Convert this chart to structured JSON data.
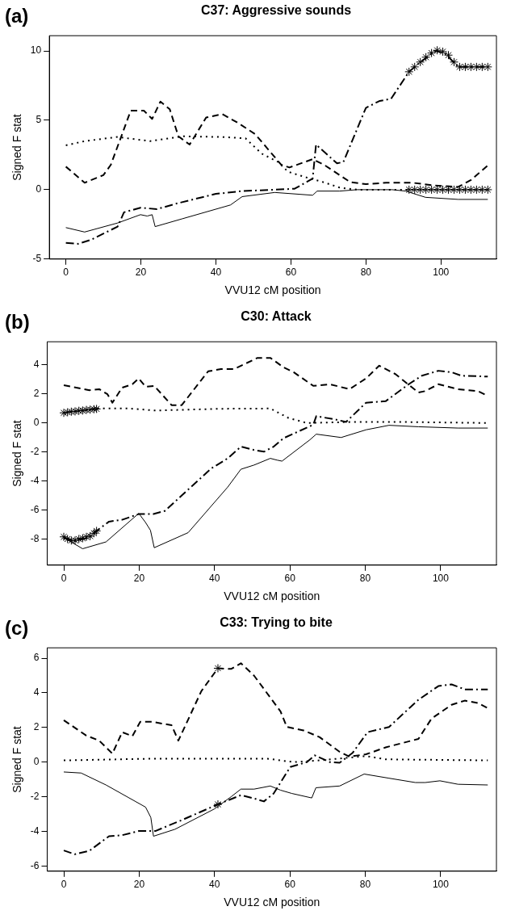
{
  "chart_data": [
    {
      "type": "line",
      "title": "C37: Aggressive sounds",
      "xlabel": "VVU12 cM position",
      "ylabel": "Signed F stat",
      "annotations": [
        "(a)"
      ],
      "xlim": [
        -4.4,
        114.8
      ],
      "xticks": [
        0,
        20,
        40,
        60,
        80,
        100
      ],
      "ylim": [
        -5,
        11.1
      ],
      "yticks": [
        -5,
        0,
        5,
        10
      ],
      "grid": false,
      "series": [
        {
          "type": "line",
          "line_style": "solid",
          "color": "#000000",
          "x": [
            0,
            5,
            13.8,
            19.9,
            21.7,
            23,
            23.8,
            31,
            43.9,
            47,
            55.7,
            65.8,
            67,
            73,
            77.6,
            87,
            90.6,
            95.9,
            104.6,
            112.5
          ],
          "values": [
            -2.73,
            -3.05,
            -2.4,
            -1.8,
            -1.9,
            -1.8,
            -2.66,
            -2.1,
            -1.1,
            -0.5,
            -0.2,
            -0.4,
            -0.1,
            -0.1,
            0,
            0,
            -0.1,
            -0.55,
            -0.7,
            -0.7
          ]
        },
        {
          "type": "line",
          "line_style": "dashed",
          "color": "#000000",
          "x": [
            0,
            5,
            10,
            12,
            17.3,
            20.8,
            23,
            25.2,
            27.7,
            30,
            33,
            37.4,
            41.7,
            46,
            50.5,
            57.4,
            59.6,
            65.8,
            68.8,
            75.8,
            80,
            85.4,
            92.4,
            98.5,
            104.6,
            108,
            112.7
          ],
          "values": [
            1.66,
            0.5,
            1.05,
            1.8,
            5.7,
            5.7,
            5.1,
            6.35,
            5.8,
            3.85,
            3.25,
            5.2,
            5.45,
            4.8,
            4,
            1.8,
            1.6,
            2.2,
            1.8,
            0.55,
            0.4,
            0.5,
            0.5,
            0.3,
            0.2,
            0.7,
            1.8
          ]
        },
        {
          "type": "line",
          "line_style": "dotted",
          "color": "#000000",
          "x": [
            0,
            5,
            13.8,
            22.5,
            31.3,
            41.7,
            47.9,
            52.2,
            56.6,
            59.2,
            64.5,
            68,
            73,
            77.6,
            112.5
          ],
          "values": [
            3.2,
            3.5,
            3.8,
            3.5,
            3.85,
            3.8,
            3.7,
            2.6,
            2,
            1.3,
            0.85,
            0.6,
            0.15,
            0,
            0
          ]
        },
        {
          "type": "line",
          "line_style": "dashdot",
          "color": "#000000",
          "x": [
            0,
            3.3,
            6.8,
            13.8,
            15.5,
            19.9,
            24.3,
            29.5,
            40,
            47,
            55.7,
            61,
            65.8,
            66.7,
            72.3,
            74,
            80,
            83.7,
            86.7,
            91.5,
            94.1,
            98.5,
            101,
            104.6,
            112.5
          ],
          "values": [
            -3.83,
            -3.9,
            -3.6,
            -2.66,
            -1.63,
            -1.3,
            -1.4,
            -1,
            -0.3,
            -0.1,
            0,
            0.07,
            0.8,
            3.25,
            1.9,
            2,
            5.9,
            6.4,
            6.55,
            8.5,
            9.1,
            10,
            9.85,
            8.85,
            8.85
          ]
        },
        {
          "type": "scatter",
          "marker": "cross",
          "color": "#000000",
          "x": [
            91.5,
            93,
            94.5,
            96,
            97.5,
            99,
            100.5,
            102,
            103.5,
            105,
            106.5,
            108,
            109.5,
            111,
            112.5
          ],
          "values": [
            8.5,
            8.85,
            9.2,
            9.55,
            9.85,
            10.05,
            9.95,
            9.7,
            9.2,
            8.85,
            8.85,
            8.85,
            8.85,
            8.85,
            8.85
          ]
        },
        {
          "type": "scatter",
          "marker": "cross",
          "color": "#000000",
          "x": [
            91.5,
            93,
            94.5,
            96,
            97.5,
            99,
            100.5,
            102,
            103.5,
            105,
            106.5,
            108,
            109.5,
            111,
            112.5
          ],
          "values": [
            0,
            0,
            0,
            0,
            0,
            0,
            0,
            0,
            0,
            0,
            0,
            0,
            0,
            0,
            0
          ]
        }
      ]
    },
    {
      "type": "line",
      "title": "C30: Attack",
      "xlabel": "VVU12 cM position",
      "ylabel": "Signed F stat",
      "annotations": [
        "(b)"
      ],
      "xlim": [
        -4.4,
        114.8
      ],
      "xticks": [
        0,
        20,
        40,
        60,
        80,
        100
      ],
      "ylim": [
        -9.8,
        5.6
      ],
      "yticks": [
        -8,
        -6,
        -4,
        -2,
        0,
        2,
        4
      ],
      "grid": false,
      "series": [
        {
          "type": "line",
          "line_style": "solid",
          "color": "#000000",
          "x": [
            0,
            5,
            11.2,
            19.9,
            21.7,
            23,
            24,
            33,
            43.5,
            47,
            50.5,
            54.8,
            56.6,
            57.9,
            65.3,
            67,
            73.6,
            80.2,
            86.3,
            94.1,
            104.6,
            112.5
          ],
          "values": [
            -7.9,
            -8.67,
            -8.2,
            -6.23,
            -6.86,
            -7.4,
            -8.6,
            -7.56,
            -4.42,
            -3.19,
            -2.9,
            -2.44,
            -2.56,
            -2.63,
            -1.16,
            -0.77,
            -1,
            -0.47,
            -0.16,
            -0.26,
            -0.35,
            -0.35
          ]
        },
        {
          "type": "line",
          "line_style": "dashed",
          "color": "#000000",
          "x": [
            0,
            6.8,
            9.4,
            11.6,
            12.9,
            15.5,
            18.2,
            19.9,
            21.7,
            24,
            28.6,
            31.3,
            38.3,
            41.7,
            45.2,
            51.4,
            54.8,
            58.3,
            61,
            66.2,
            70.6,
            75.8,
            80.2,
            83.7,
            88,
            94.1,
            95.9,
            99.4,
            104.6,
            109.9,
            112.5
          ],
          "values": [
            2.6,
            2.26,
            2.33,
            1.98,
            1.4,
            2.44,
            2.67,
            3.07,
            2.5,
            2.56,
            1.23,
            1.23,
            3.56,
            3.72,
            3.72,
            4.49,
            4.49,
            3.84,
            3.5,
            2.56,
            2.67,
            2.33,
            3.07,
            3.95,
            3.37,
            2.1,
            2.2,
            2.67,
            2.33,
            2.2,
            1.86
          ]
        },
        {
          "type": "line",
          "line_style": "dotted",
          "color": "#000000",
          "x": [
            0,
            8.7,
            17.3,
            24.3,
            41.7,
            54.8,
            59.6,
            64.5,
            76.7,
            89.8,
            112.5
          ],
          "values": [
            0.7,
            1,
            1,
            0.86,
            0.98,
            1,
            0.35,
            0,
            0.07,
            0.07,
            0
          ]
        },
        {
          "type": "line",
          "line_style": "dashdot",
          "color": "#000000",
          "x": [
            0,
            2.9,
            6.8,
            8.7,
            12,
            15.5,
            19.9,
            23.8,
            26.9,
            31.3,
            39.1,
            43.5,
            47,
            50.5,
            53.1,
            55.7,
            58.3,
            66.2,
            67,
            72.3,
            74.9,
            80.2,
            85.4,
            91.5,
            95,
            99.4,
            102.9,
            105.5,
            112.5
          ],
          "values": [
            -7.9,
            -8.14,
            -7.9,
            -7.44,
            -6.8,
            -6.67,
            -6.28,
            -6.28,
            -6.05,
            -5,
            -3.14,
            -2.44,
            -1.63,
            -1.86,
            -1.98,
            -1.63,
            -1.05,
            -0.12,
            0.47,
            0.23,
            0.07,
            1.4,
            1.5,
            2.67,
            3.26,
            3.6,
            3.5,
            3.26,
            3.2
          ]
        },
        {
          "type": "scatter",
          "marker": "cross",
          "color": "#000000",
          "x": [
            0,
            1,
            2,
            3,
            4,
            5,
            6,
            7,
            8,
            8.7
          ],
          "values": [
            -7.85,
            -8,
            -8.1,
            -8.1,
            -8,
            -7.95,
            -7.85,
            -7.8,
            -7.6,
            -7.44
          ]
        },
        {
          "type": "scatter",
          "marker": "cross",
          "color": "#000000",
          "x": [
            0,
            1,
            2,
            3,
            4,
            5,
            6,
            7,
            8,
            8.7
          ],
          "values": [
            0.7,
            0.74,
            0.78,
            0.8,
            0.84,
            0.86,
            0.9,
            0.92,
            0.95,
            0.97
          ]
        }
      ]
    },
    {
      "type": "line",
      "title": "C33: Trying to bite",
      "xlabel": "VVU12 cM position",
      "ylabel": "Signed F stat",
      "annotations": [
        "(c)"
      ],
      "xlim": [
        -4.4,
        114.8
      ],
      "xticks": [
        0,
        20,
        40,
        60,
        80,
        100
      ],
      "ylim": [
        -6.3,
        6.6
      ],
      "yticks": [
        -6,
        -4,
        -2,
        0,
        2,
        4,
        6
      ],
      "grid": false,
      "series": [
        {
          "type": "line",
          "line_style": "solid",
          "color": "#000000",
          "x": [
            0,
            4.6,
            11.2,
            21.7,
            23.1,
            23.8,
            29.5,
            40,
            44.4,
            47,
            50.5,
            54.8,
            57.5,
            60.5,
            65.8,
            66.9,
            73.2,
            79.7,
            86.3,
            93.3,
            95.9,
            99.8,
            104.6,
            112.5
          ],
          "values": [
            -0.57,
            -0.63,
            -1.32,
            -2.6,
            -3.2,
            -4.28,
            -3.88,
            -2.7,
            -2,
            -1.56,
            -1.56,
            -1.38,
            -1.62,
            -1.81,
            -2.07,
            -1.48,
            -1.38,
            -0.69,
            -0.93,
            -1.18,
            -1.18,
            -1.08,
            -1.28,
            -1.32
          ]
        },
        {
          "type": "line",
          "line_style": "dashed",
          "color": "#000000",
          "x": [
            0,
            5.9,
            9.4,
            12.9,
            15.5,
            18.2,
            20.3,
            23.4,
            26,
            28.6,
            30.4,
            36.5,
            40.9,
            44.4,
            47,
            50.5,
            57.5,
            59.2,
            63.6,
            67.9,
            73.2,
            75.8,
            80.2,
            85.4,
            94.1,
            97.6,
            102.9,
            106.4,
            109.9,
            112.5
          ],
          "values": [
            2.42,
            1.54,
            1.24,
            0.49,
            1.73,
            1.5,
            2.33,
            2.33,
            2.23,
            2.13,
            1.24,
            4.1,
            5.42,
            5.38,
            5.71,
            4.99,
            2.93,
            2.03,
            1.83,
            1.44,
            0.59,
            0.32,
            0.45,
            0.85,
            1.34,
            2.52,
            3.31,
            3.55,
            3.41,
            3.11
          ]
        },
        {
          "type": "line",
          "line_style": "dotted",
          "color": "#000000",
          "x": [
            0,
            24.3,
            54,
            61,
            67.9,
            80.2,
            85.4,
            112.5
          ],
          "values": [
            0.1,
            0.2,
            0.2,
            0,
            0.1,
            0.35,
            0.16,
            0.1
          ]
        },
        {
          "type": "line",
          "line_style": "dashdot",
          "color": "#000000",
          "x": [
            0,
            2.9,
            6.8,
            12,
            15.5,
            19.9,
            24.3,
            31.3,
            40.9,
            47,
            50.5,
            53.1,
            55.7,
            60.1,
            64.5,
            66.6,
            70.6,
            73.2,
            76.7,
            80.6,
            86.3,
            94.1,
            99.4,
            102.9,
            106.4,
            112.5
          ],
          "values": [
            -5.1,
            -5.32,
            -5.12,
            -4.28,
            -4.22,
            -3.98,
            -3.98,
            -3.35,
            -2.44,
            -1.91,
            -2.1,
            -2.27,
            -1.81,
            -0.28,
            0,
            0.39,
            0,
            -0.04,
            0.55,
            1.73,
            2.03,
            3.6,
            4.39,
            4.49,
            4.2,
            4.2
          ]
        },
        {
          "type": "scatter",
          "marker": "cross",
          "color": "#000000",
          "x": [
            40.9
          ],
          "values": [
            5.42
          ]
        },
        {
          "type": "scatter",
          "marker": "cross",
          "color": "#000000",
          "x": [
            40.9
          ],
          "values": [
            -2.44
          ]
        }
      ]
    }
  ]
}
